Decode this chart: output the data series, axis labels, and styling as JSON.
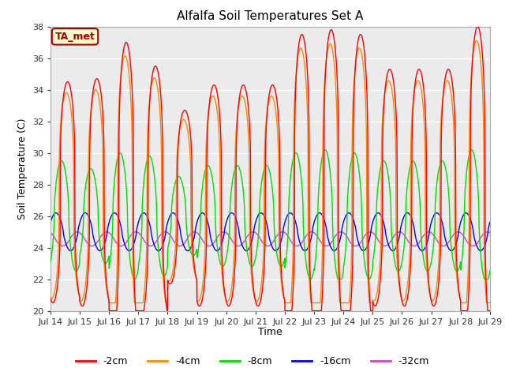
{
  "title": "Alfalfa Soil Temperatures Set A",
  "xlabel": "Time",
  "ylabel": "Soil Temperature (C)",
  "ylim": [
    20,
    38
  ],
  "yticks": [
    20,
    22,
    24,
    26,
    28,
    30,
    32,
    34,
    36,
    38
  ],
  "n_days": 15,
  "xtick_labels": [
    "Jul 14",
    "Jul 15",
    "Jul 16",
    "Jul 17",
    "Jul 18",
    "Jul 19",
    "Jul 20",
    "Jul 21",
    "Jul 22",
    "Jul 23",
    "Jul 24",
    "Jul 25",
    "Jul 26",
    "Jul 27",
    "Jul 28",
    "Jul 29"
  ],
  "annotation_text": "TA_met",
  "annotation_color": "#aa0000",
  "annotation_bg": "#ffffcc",
  "line_colors": {
    "2cm": "#ff0000",
    "4cm": "#ff8800",
    "8cm": "#00dd00",
    "16cm": "#0000ff",
    "32cm": "#cc44cc"
  },
  "legend_labels": [
    "-2cm",
    "-4cm",
    "-8cm",
    "-16cm",
    "-32cm"
  ],
  "fig_facecolor": "#ffffff",
  "ax_facecolor": "#ebebeb",
  "grid_color": "#ffffff",
  "title_fontsize": 11,
  "axis_fontsize": 9,
  "tick_fontsize": 8
}
